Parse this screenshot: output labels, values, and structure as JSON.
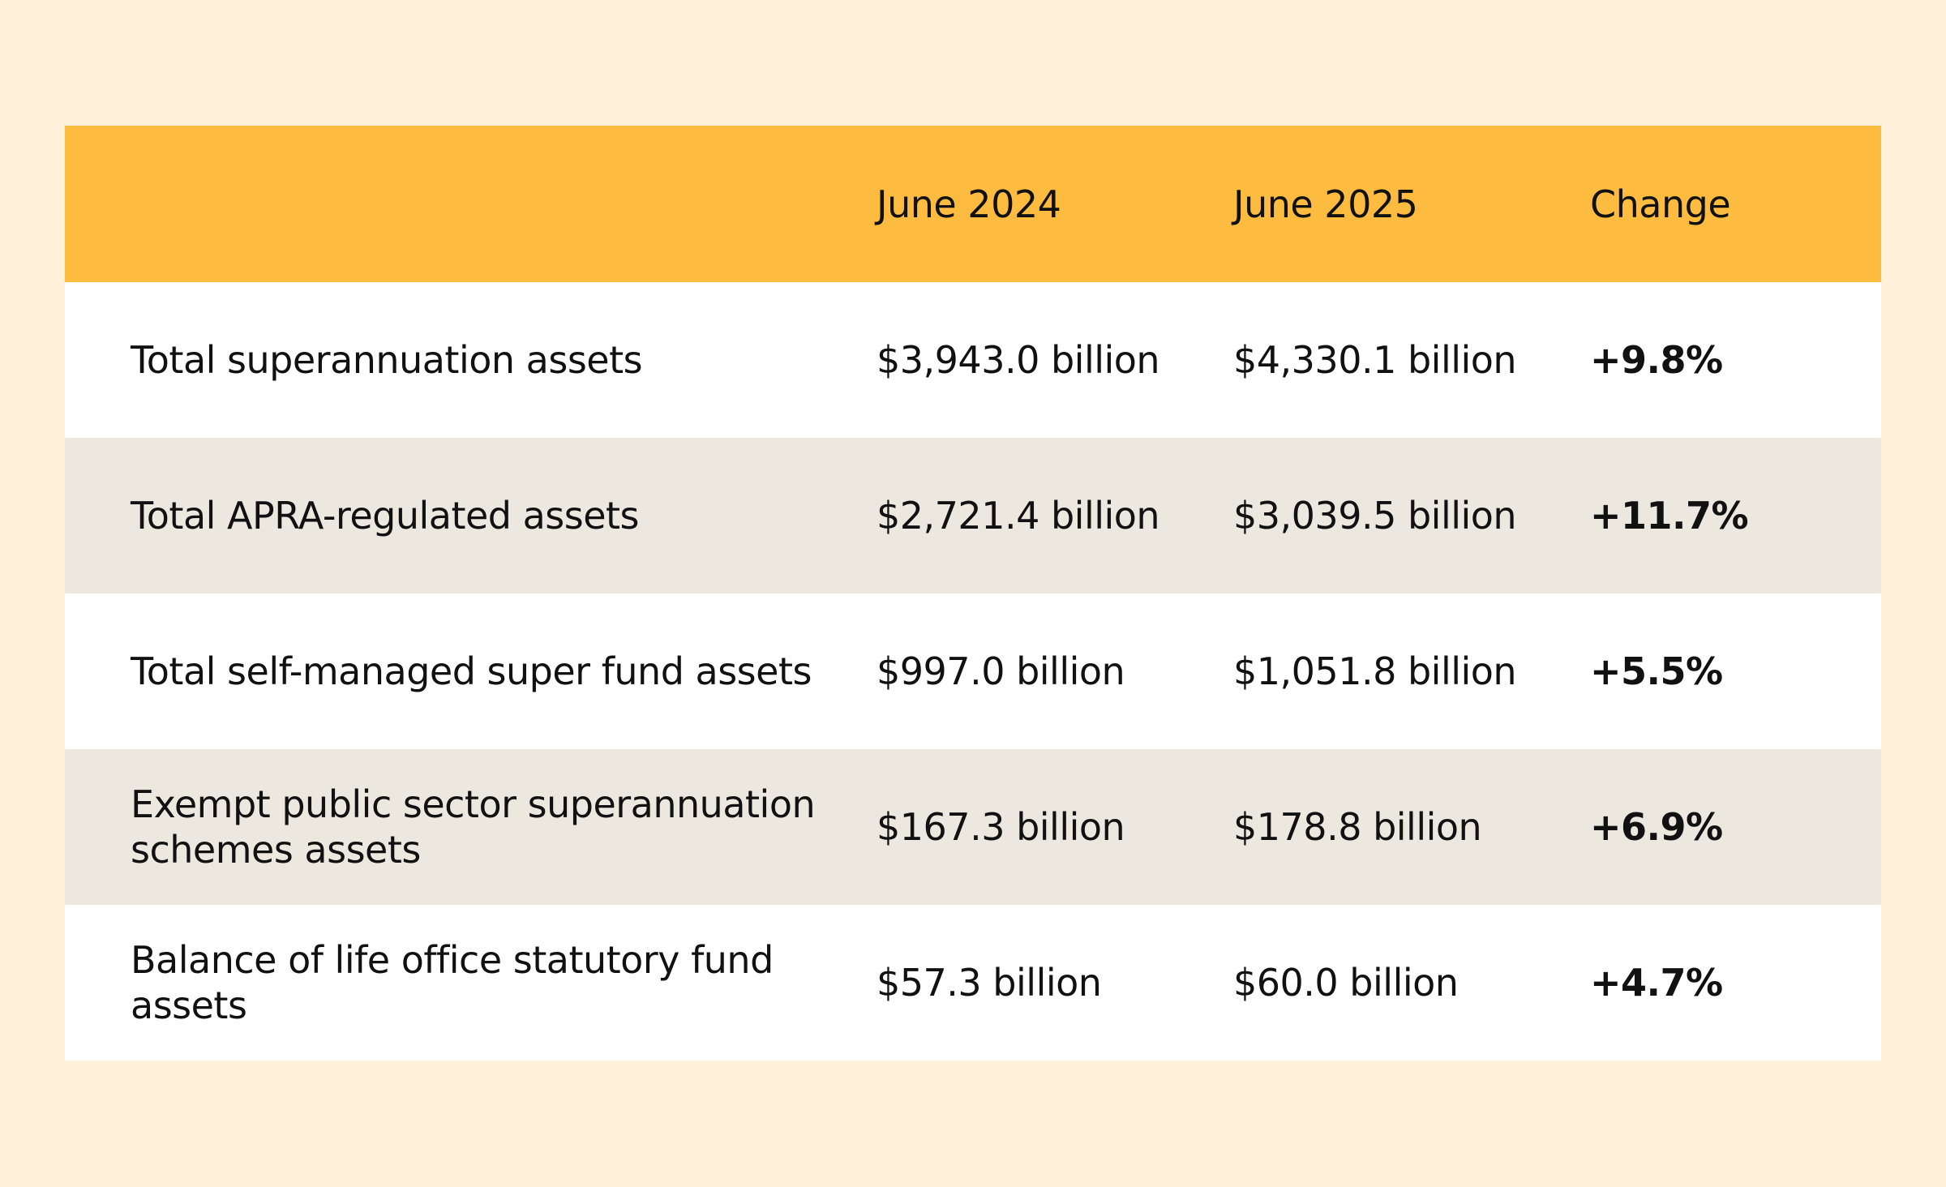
{
  "chart_data": {
    "type": "table",
    "columns": [
      "",
      "June 2024",
      "June 2025",
      "Change"
    ],
    "rows": [
      {
        "label": "Total superannuation assets",
        "june_2024": "$3,943.0 billion",
        "june_2025": "$4,330.1 billion",
        "change": "+9.8%"
      },
      {
        "label": "Total APRA-regulated assets",
        "june_2024": "$2,721.4 billion",
        "june_2025": "$3,039.5 billion",
        "change": "+11.7%"
      },
      {
        "label": "Total self-managed super fund assets",
        "june_2024": "$997.0 billion",
        "june_2025": "$1,051.8 billion",
        "change": "+5.5%"
      },
      {
        "label": "Exempt public sector superannuation schemes assets",
        "june_2024": "$167.3 billion",
        "june_2025": "$178.8 billion",
        "change": "+6.9%"
      },
      {
        "label": "Balance of life office statutory fund assets",
        "june_2024": "$57.3 billion",
        "june_2025": "$60.0 billion",
        "change": "+4.7%"
      }
    ]
  },
  "colors": {
    "page_background": "#FEF1DA",
    "header_background": "#FDBC3F",
    "row_alt_background": "#ECE8E0",
    "row_background": "#FFFFFF",
    "text": "#111111"
  }
}
